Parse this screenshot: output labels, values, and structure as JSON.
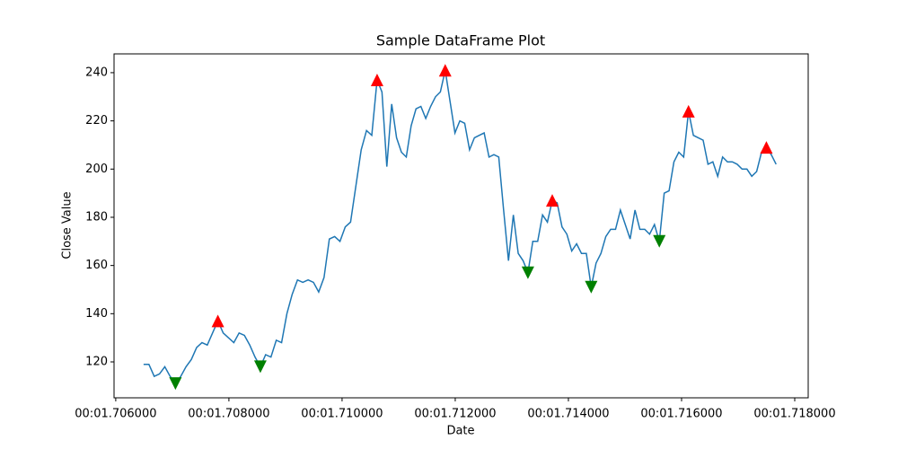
{
  "chart_data": {
    "type": "line",
    "title": "Sample DataFrame Plot",
    "xlabel": "Date",
    "ylabel": "Close Value",
    "xlim": [
      1.70597,
      1.718238
    ],
    "ylim": [
      105.1,
      247.8
    ],
    "xticks": [
      {
        "value": 1.706,
        "label": "00:01.706000"
      },
      {
        "value": 1.708,
        "label": "00:01.708000"
      },
      {
        "value": 1.71,
        "label": "00:01.710000"
      },
      {
        "value": 1.712,
        "label": "00:01.712000"
      },
      {
        "value": 1.714,
        "label": "00:01.714000"
      },
      {
        "value": 1.716,
        "label": "00:01.716000"
      },
      {
        "value": 1.718,
        "label": "00:01.718000"
      }
    ],
    "yticks": [
      120,
      140,
      160,
      180,
      200,
      220,
      240
    ],
    "series": [
      {
        "color": "#1f77b4",
        "x": [
          1.706492,
          1.706586,
          1.70668,
          1.706773,
          1.706867,
          1.706961,
          1.707055,
          1.707149,
          1.707242,
          1.707336,
          1.70743,
          1.707524,
          1.707618,
          1.707711,
          1.707805,
          1.707899,
          1.707993,
          1.708087,
          1.70818,
          1.708274,
          1.708368,
          1.708462,
          1.708556,
          1.708649,
          1.708743,
          1.708837,
          1.708931,
          1.709025,
          1.709118,
          1.709212,
          1.709306,
          1.7094,
          1.709494,
          1.709587,
          1.709681,
          1.709775,
          1.709869,
          1.709963,
          1.710056,
          1.71015,
          1.710244,
          1.710338,
          1.710432,
          1.710525,
          1.710619,
          1.710705,
          1.710791,
          1.710877,
          1.710963,
          1.711049,
          1.711135,
          1.711221,
          1.711307,
          1.711393,
          1.711479,
          1.711565,
          1.711651,
          1.711737,
          1.711823,
          1.711909,
          1.711995,
          1.712081,
          1.712167,
          1.712253,
          1.712339,
          1.712425,
          1.712511,
          1.712597,
          1.712683,
          1.712769,
          1.712855,
          1.712941,
          1.713027,
          1.713113,
          1.713199,
          1.713285,
          1.713371,
          1.713457,
          1.713543,
          1.713629,
          1.713715,
          1.713801,
          1.713887,
          1.713973,
          1.714059,
          1.714145,
          1.714231,
          1.714317,
          1.714403,
          1.714489,
          1.714575,
          1.714661,
          1.714747,
          1.714833,
          1.714919,
          1.715005,
          1.715091,
          1.715177,
          1.715263,
          1.715349,
          1.715435,
          1.715521,
          1.715607,
          1.715693,
          1.715779,
          1.715865,
          1.715951,
          1.716037,
          1.716123,
          1.716209,
          1.716295,
          1.716381,
          1.716467,
          1.716553,
          1.716639,
          1.716725,
          1.716811,
          1.716897,
          1.716983,
          1.717069,
          1.717155,
          1.717241,
          1.717327,
          1.717413,
          1.717499,
          1.717585,
          1.717671
        ],
        "values": [
          119,
          119,
          114,
          115,
          118,
          114,
          111,
          114,
          118,
          121,
          126,
          128,
          127,
          132,
          137,
          132,
          130,
          128,
          132,
          131,
          127,
          122,
          118,
          123,
          122,
          129,
          128,
          140,
          148,
          154,
          153,
          154,
          153,
          149,
          155,
          171,
          172,
          170,
          176,
          178,
          193,
          208,
          216,
          214,
          237,
          232,
          201,
          227,
          213,
          207,
          205,
          218,
          225,
          226,
          221,
          226,
          230,
          232,
          241,
          228,
          215,
          220,
          219,
          208,
          213,
          214,
          215,
          205,
          206,
          205,
          183,
          162,
          181,
          165,
          162,
          157,
          170,
          170,
          181,
          178,
          187,
          186,
          176,
          173,
          166,
          169,
          165,
          165,
          151,
          161,
          165,
          172,
          175,
          175,
          183,
          177,
          171,
          183,
          175,
          175,
          173,
          177,
          170,
          190,
          191,
          203,
          207,
          205,
          224,
          214,
          213,
          212,
          202,
          203,
          197,
          205,
          203,
          203,
          202,
          200,
          200,
          197,
          199,
          207,
          209,
          206,
          202
        ]
      }
    ],
    "markers": [
      {
        "marker": "^",
        "color": "red",
        "x": [
          1.707805,
          1.710619,
          1.711823,
          1.713715,
          1.716123,
          1.717499
        ],
        "values": [
          137,
          237,
          241,
          187,
          224,
          209
        ]
      },
      {
        "marker": "v",
        "color": "green",
        "x": [
          1.707055,
          1.708556,
          1.713285,
          1.714403,
          1.715607
        ],
        "values": [
          111,
          118,
          157,
          151,
          170
        ]
      }
    ]
  }
}
